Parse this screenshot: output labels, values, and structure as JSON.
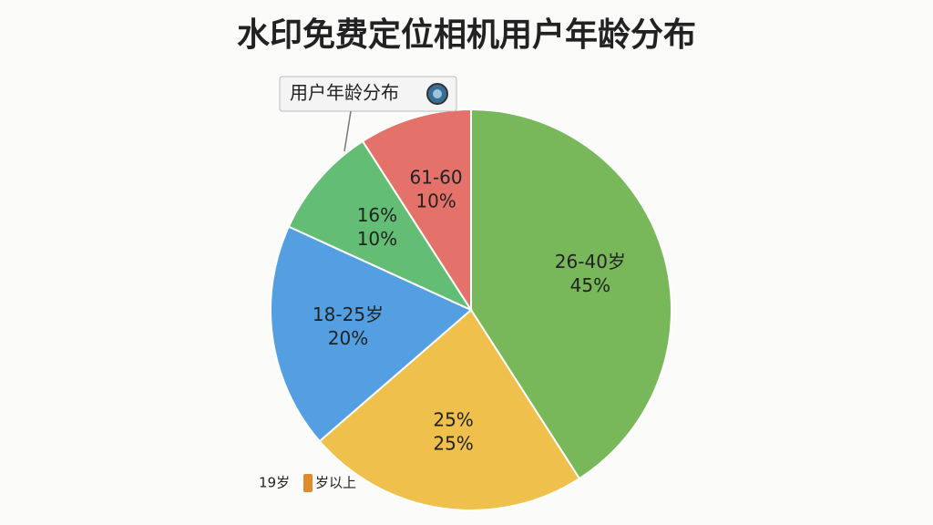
{
  "chart_data": {
    "type": "pie",
    "title": "水印免费定位相机用户年龄分布",
    "tooltip": "用户年龄分布",
    "categories": [
      "26-40岁",
      "25%",
      "18-25岁",
      "16%",
      "61-60"
    ],
    "values": [
      45,
      25,
      20,
      10,
      10
    ],
    "value_labels": [
      "45%",
      "25%",
      "20%",
      "10%",
      "10%"
    ],
    "colors": [
      "#78b85a",
      "#efc04c",
      "#549fe2",
      "#63bd75",
      "#e4726b"
    ],
    "annotations": [
      "19岁",
      "岁以上"
    ]
  }
}
